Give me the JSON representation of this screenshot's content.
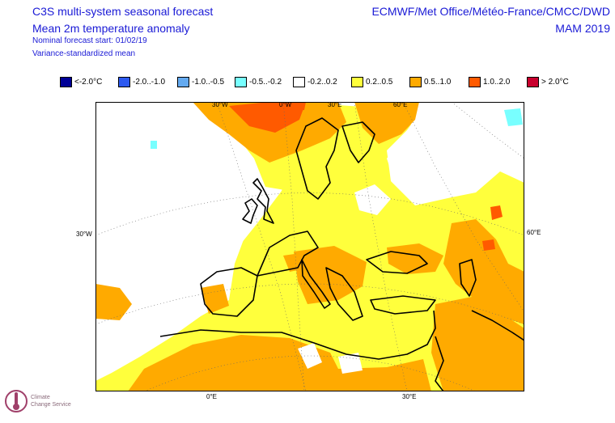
{
  "header": {
    "title_line1": "C3S multi-system seasonal forecast",
    "title_line2": "Mean 2m temperature anomaly",
    "subtitle_line1": "Nominal forecast start: 01/02/19",
    "subtitle_line2": "Variance-standardized mean",
    "org": "ECMWF/Met Office/Météo-France/CMCC/DWD",
    "season": "MAM 2019"
  },
  "legend": [
    {
      "label": "<-2.0°C",
      "color": "#000096"
    },
    {
      "label": "-2.0..-1.0",
      "color": "#2d5af0"
    },
    {
      "label": "-1.0..-0.5",
      "color": "#64aaf0"
    },
    {
      "label": "-0.5..-0.2",
      "color": "#78ffff"
    },
    {
      "label": "-0.2..0.2",
      "color": "#ffffff"
    },
    {
      "label": "0.2..0.5",
      "color": "#ffff3c"
    },
    {
      "label": "0.5..1.0",
      "color": "#ffaa00"
    },
    {
      "label": "1.0..2.0",
      "color": "#ff5a00"
    },
    {
      "label": "> 2.0°C",
      "color": "#c8002d"
    }
  ],
  "coords": {
    "top": [
      "30°W",
      "0°W",
      "30°E",
      "60°E"
    ],
    "left": "30°W",
    "right": "60°E",
    "bottom": [
      "0°E",
      "30°E"
    ]
  },
  "logo": {
    "text1": "Climate",
    "text2": "Change Service"
  }
}
